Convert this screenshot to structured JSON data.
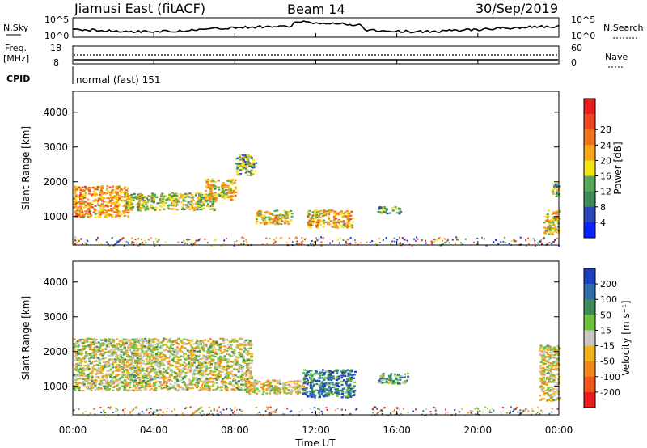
{
  "header": {
    "radar_title": "Jiamusi East (fitACF)",
    "beam": "Beam 14",
    "date": "30/Sep/2019"
  },
  "top_panels": {
    "nsky_label": "N.Sky",
    "nsky_ticks": [
      "10^5",
      "10^0"
    ],
    "nsearch_label": "N.Search",
    "freq_label_1": "Freq.",
    "freq_label_2": "[MHz]",
    "freq_ticks": [
      "18",
      "8"
    ],
    "nave_ticks": [
      "60",
      "0"
    ],
    "nave_label": "Nave",
    "cpid_label": "CPID",
    "cpid_text": "normal (fast) 151"
  },
  "chart_data": [
    {
      "type": "heatmap",
      "name": "power",
      "ylabel": "Slant Range [km]",
      "xlabel": "Time UT",
      "x_ticks": [
        "00:00",
        "04:00",
        "08:00",
        "12:00",
        "16:00",
        "20:00",
        "00:00"
      ],
      "y_ticks": [
        "1000",
        "2000",
        "3000",
        "4000"
      ],
      "ylim": [
        180,
        4600
      ],
      "colorbar_label": "Power [dB]",
      "colorbar_ticks": [
        "4",
        "8",
        "12",
        "16",
        "20",
        "24",
        "28"
      ],
      "colors": [
        "#0a22ff",
        "#2a46b8",
        "#3f8a59",
        "#57a85a",
        "#f2e313",
        "#f7a61a",
        "#f2741c",
        "#ef4523",
        "#e81c1c"
      ],
      "patches": [
        {
          "t0": 0.0,
          "t1": 2.7,
          "r0": 1000,
          "r1": 1900,
          "level": 0.65
        },
        {
          "t0": 2.5,
          "t1": 7.0,
          "r0": 1200,
          "r1": 1700,
          "level": 0.45
        },
        {
          "t0": 6.5,
          "t1": 8.0,
          "r0": 1500,
          "r1": 2100,
          "level": 0.55
        },
        {
          "t0": 8.0,
          "t1": 9.0,
          "r0": 2200,
          "r1": 2800,
          "level": 0.4
        },
        {
          "t0": 9.0,
          "t1": 10.8,
          "r0": 800,
          "r1": 1200,
          "level": 0.55
        },
        {
          "t0": 11.5,
          "t1": 13.8,
          "r0": 700,
          "r1": 1200,
          "level": 0.6
        },
        {
          "t0": 15.0,
          "t1": 16.2,
          "r0": 1100,
          "r1": 1300,
          "level": 0.35
        },
        {
          "t0": 23.2,
          "t1": 24.0,
          "r0": 500,
          "r1": 1200,
          "level": 0.55
        },
        {
          "t0": 23.6,
          "t1": 24.0,
          "r0": 1600,
          "r1": 2000,
          "level": 0.4
        }
      ]
    },
    {
      "type": "heatmap",
      "name": "velocity",
      "ylabel": "Slant Range [km]",
      "xlabel": "Time UT",
      "x_ticks": [
        "00:00",
        "04:00",
        "08:00",
        "12:00",
        "16:00",
        "20:00",
        "00:00"
      ],
      "y_ticks": [
        "1000",
        "2000",
        "3000",
        "4000"
      ],
      "ylim": [
        180,
        4600
      ],
      "colorbar_label": "Velocity [m s⁻¹]",
      "colorbar_ticks": [
        "200",
        "100",
        "50",
        "15",
        "-15",
        "-50",
        "-100",
        "-200"
      ],
      "colors": [
        "#1c3fbf",
        "#2e6ca8",
        "#3d8c5a",
        "#6fc23d",
        "#c8c8c0",
        "#f2b21a",
        "#f28a1a",
        "#f2561c",
        "#e81c1c"
      ],
      "patches": [
        {
          "t0": 0.0,
          "t1": 8.8,
          "r0": 900,
          "r1": 2400,
          "level": 0.5
        },
        {
          "t0": 8.5,
          "t1": 11.5,
          "r0": 800,
          "r1": 1200,
          "level": 0.55
        },
        {
          "t0": 11.3,
          "t1": 13.9,
          "r0": 700,
          "r1": 1500,
          "level": 0.2
        },
        {
          "t0": 15.0,
          "t1": 16.5,
          "r0": 1100,
          "r1": 1400,
          "level": 0.35
        },
        {
          "t0": 23.0,
          "t1": 24.0,
          "r0": 600,
          "r1": 2200,
          "level": 0.55
        }
      ]
    }
  ]
}
